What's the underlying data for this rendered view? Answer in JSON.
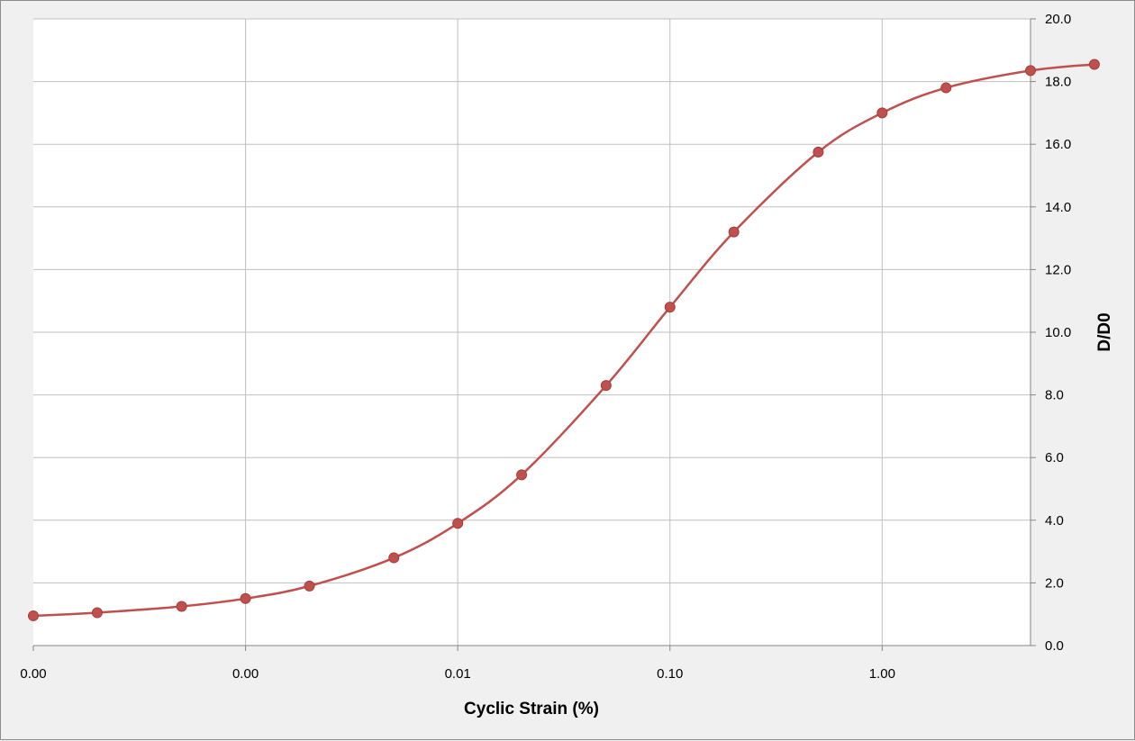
{
  "chart_data": {
    "type": "line",
    "title": "",
    "xlabel": "Cyclic Strain (%)",
    "ylabel": "D/D0",
    "x_scale": "log",
    "xlim": [
      0.0001,
      5
    ],
    "ylim": [
      0,
      20
    ],
    "y_axis_position": "right",
    "grid": true,
    "legend": "none",
    "x_ticks": [
      {
        "value": 0.0001,
        "label": "0.00"
      },
      {
        "value": 0.001,
        "label": "0.00"
      },
      {
        "value": 0.01,
        "label": "0.01"
      },
      {
        "value": 0.1,
        "label": "0.10"
      },
      {
        "value": 1,
        "label": "1.00"
      }
    ],
    "y_ticks": [
      {
        "value": 0,
        "label": "0.0"
      },
      {
        "value": 2,
        "label": "2.0"
      },
      {
        "value": 4,
        "label": "4.0"
      },
      {
        "value": 6,
        "label": "6.0"
      },
      {
        "value": 8,
        "label": "8.0"
      },
      {
        "value": 10,
        "label": "10.0"
      },
      {
        "value": 12,
        "label": "12.0"
      },
      {
        "value": 14,
        "label": "14.0"
      },
      {
        "value": 16,
        "label": "16.0"
      },
      {
        "value": 18,
        "label": "18.0"
      },
      {
        "value": 20,
        "label": "20.0"
      }
    ],
    "series": [
      {
        "color": "#c0504d",
        "x": [
          0.0001,
          0.0002,
          0.0005,
          0.001,
          0.002,
          0.005,
          0.01,
          0.02,
          0.05,
          0.1,
          0.2,
          0.5,
          1,
          2,
          5,
          10
        ],
        "y": [
          0.95,
          1.05,
          1.25,
          1.5,
          1.9,
          2.8,
          3.9,
          5.45,
          8.3,
          10.8,
          13.2,
          15.75,
          17.0,
          17.8,
          18.35,
          18.55
        ]
      }
    ]
  }
}
